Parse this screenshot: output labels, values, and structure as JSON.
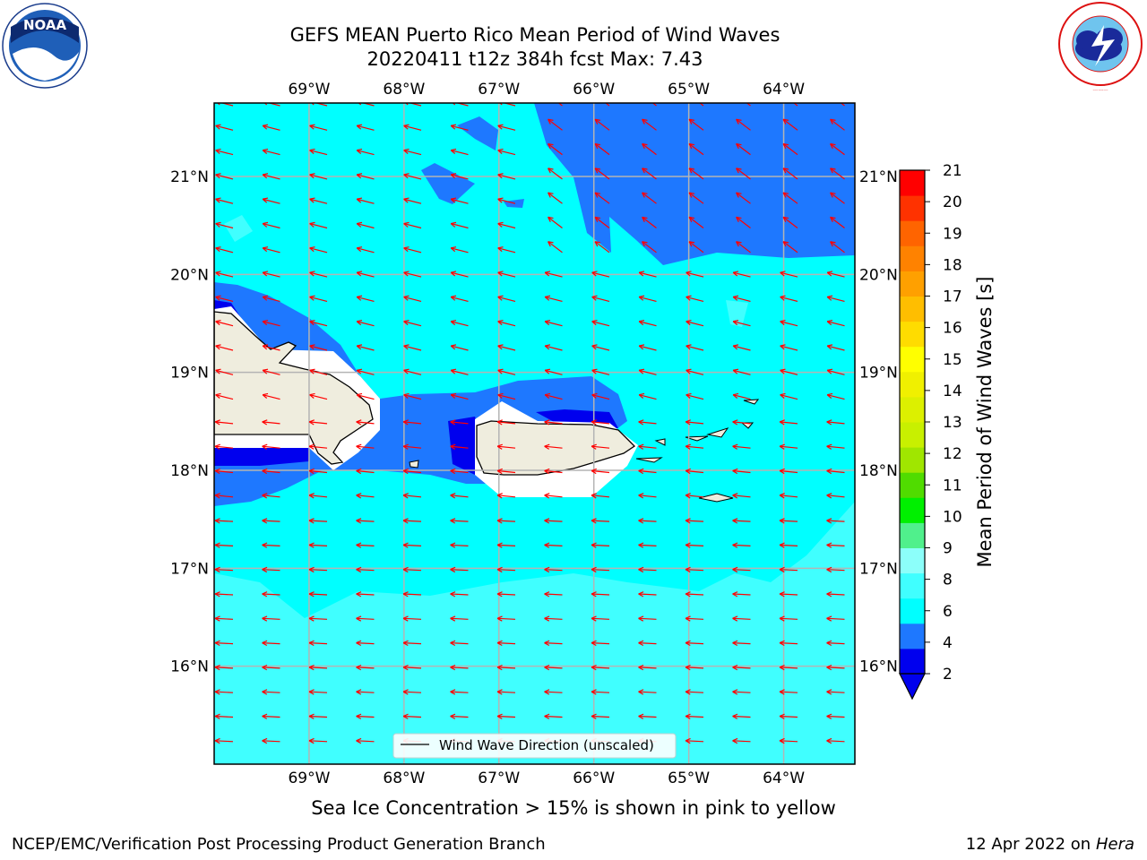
{
  "title": {
    "line1": "GEFS MEAN Puerto Rico Mean Period of Wind Waves",
    "line2": "20220411 t12z 384h fcst   Max: 7.43"
  },
  "axes": {
    "lon_labels": [
      "69°W",
      "68°W",
      "67°W",
      "66°W",
      "65°W",
      "64°W"
    ],
    "lon_values": [
      -69,
      -68,
      -67,
      -66,
      -65,
      -64
    ],
    "lat_labels": [
      "21°N",
      "20°N",
      "19°N",
      "18°N",
      "17°N",
      "16°N"
    ],
    "lat_values": [
      21,
      20,
      19,
      18,
      17,
      16
    ],
    "lon_range": [
      -70,
      -63.25
    ],
    "lat_range": [
      15,
      21.75
    ]
  },
  "legend": {
    "entry": "Wind Wave Direction (unscaled)"
  },
  "colorbar": {
    "label": "Mean Period of Wind Waves [s]",
    "ticks": [
      "21",
      "20",
      "19",
      "18",
      "17",
      "16",
      "15",
      "14",
      "13",
      "12",
      "11",
      "10",
      "9",
      "8",
      "6",
      "4",
      "2"
    ],
    "colors": [
      "#0000ee",
      "#1e78ff",
      "#00ffff",
      "#40ffff",
      "#8cfffa",
      "#50f08c",
      "#00f000",
      "#50dc00",
      "#a0e600",
      "#c8f000",
      "#dcf000",
      "#f0f000",
      "#ffff00",
      "#ffdc00",
      "#ffbe00",
      "#ffa000",
      "#ff8200",
      "#ff6400",
      "#ff3200",
      "#ff0000"
    ],
    "extend_color": "#0000ee"
  },
  "colors": {
    "land": "#efedde",
    "arrow": "#ff0000",
    "grid": "#b4b4b4"
  },
  "footer": {
    "note": "Sea Ice Concentration > 15% is shown in pink to yellow",
    "left": "NCEP/EMC/Verification Post Processing Product Generation Branch",
    "right_prefix": "12 Apr 2022 on ",
    "right_host": "Hera"
  },
  "logos": {
    "left": "NOAA",
    "right": "NATIONAL WEATHER SERVICE"
  }
}
